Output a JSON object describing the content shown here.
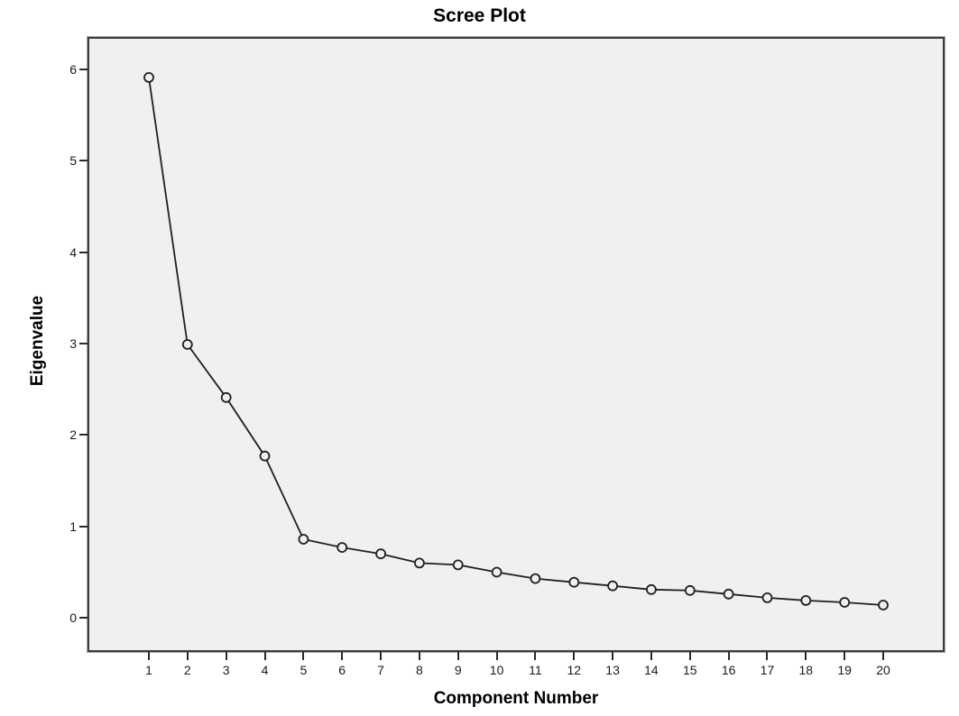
{
  "chart_data": {
    "type": "line",
    "title": "Scree Plot",
    "xlabel": "Component Number",
    "ylabel": "Eigenvalue",
    "categories": [
      "1",
      "2",
      "3",
      "4",
      "5",
      "6",
      "7",
      "8",
      "9",
      "10",
      "11",
      "12",
      "13",
      "14",
      "15",
      "16",
      "17",
      "18",
      "19",
      "20"
    ],
    "series": [
      {
        "name": "Eigenvalue",
        "values": [
          5.91,
          2.99,
          2.41,
          1.77,
          0.86,
          0.77,
          0.7,
          0.6,
          0.58,
          0.5,
          0.43,
          0.39,
          0.35,
          0.31,
          0.3,
          0.26,
          0.22,
          0.19,
          0.17,
          0.14
        ]
      }
    ],
    "yticks": [
      0,
      1,
      2,
      3,
      4,
      5,
      6
    ],
    "ylim": [
      -0.353,
      6.333
    ],
    "grid": false,
    "legend": false,
    "marker": "open-circle",
    "line_style": "solid"
  },
  "colors": {
    "canvas_bg": "#ffffff",
    "plot_bg": "#f0f0f0",
    "frame": "#3d3d3d",
    "line": "#1f1f1f",
    "marker_stroke": "#1f1f1f",
    "tick": "#2a2a2a",
    "text": "#000000",
    "tick_label": "#1a1a1a"
  }
}
